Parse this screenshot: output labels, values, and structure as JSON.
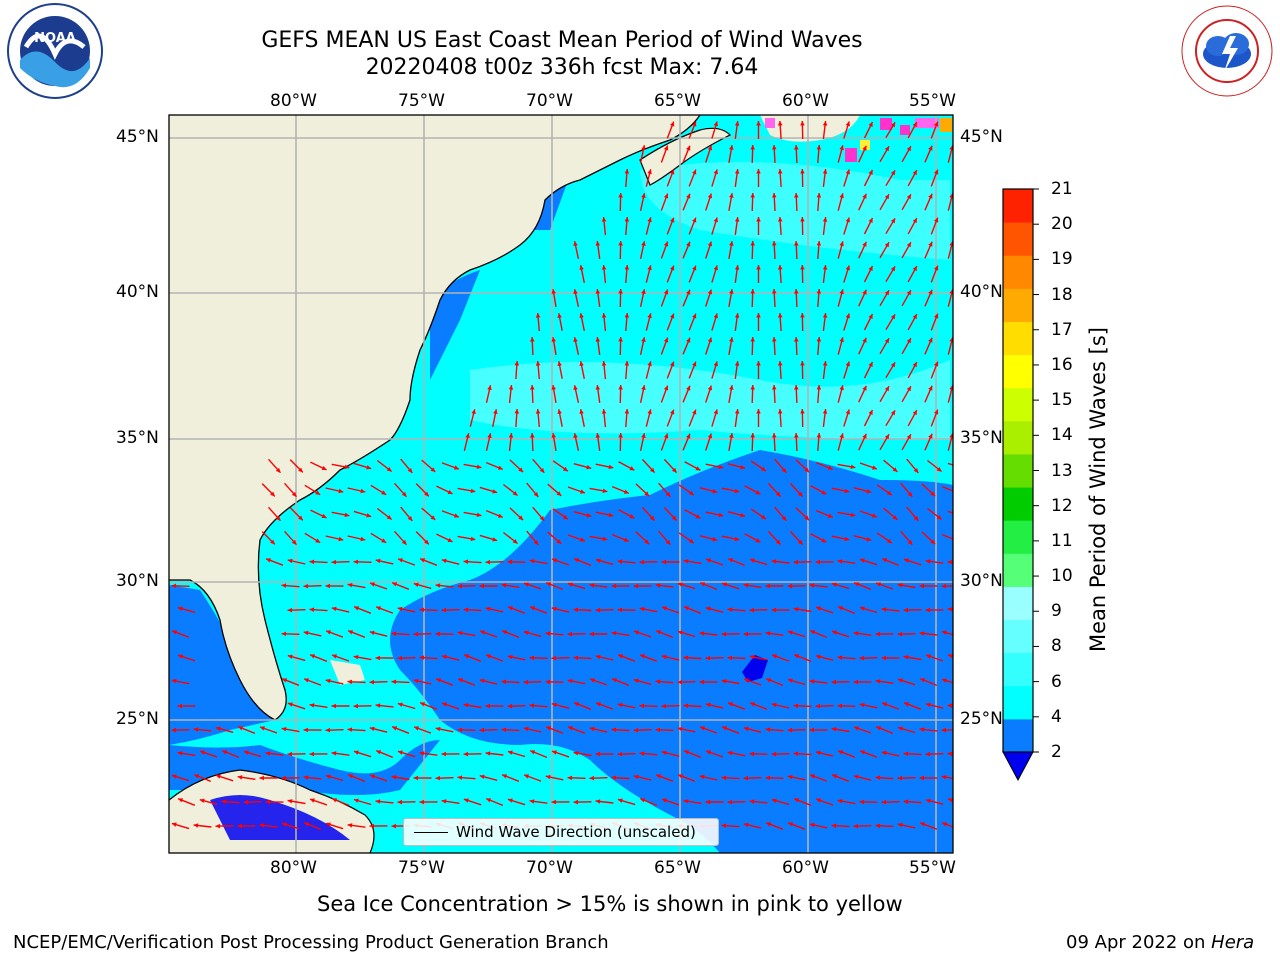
{
  "header": {
    "title_line1": "GEFS MEAN US East Coast Mean Period of Wind Waves",
    "title_line2": "20220408 t00z 336h fcst   Max: 7.64"
  },
  "logos": {
    "left": "NOAA",
    "right": "NATIONAL WEATHER SERVICE"
  },
  "axes": {
    "lon_labels": [
      "80°W",
      "75°W",
      "70°W",
      "65°W",
      "60°W",
      "55°W"
    ],
    "lat_labels": [
      "45°N",
      "40°N",
      "35°N",
      "30°N",
      "25°N"
    ]
  },
  "colorbar": {
    "label": "Mean Period of Wind Waves [s]",
    "ticks": [
      "2",
      "4",
      "6",
      "8",
      "9",
      "10",
      "11",
      "12",
      "13",
      "14",
      "15",
      "16",
      "17",
      "18",
      "19",
      "20",
      "21"
    ],
    "colors": [
      "#0a7cff",
      "#00ffff",
      "#33ffff",
      "#66ffff",
      "#99ffff",
      "#55ff77",
      "#22ee44",
      "#00cc00",
      "#66dd00",
      "#aaee00",
      "#ccff00",
      "#ffff00",
      "#ffdd00",
      "#ffaa00",
      "#ff8800",
      "#ff5500",
      "#ff2200",
      "#ff0000"
    ],
    "under_color": "#0000ee"
  },
  "legend": {
    "label": "Wind Wave Direction (unscaled)"
  },
  "colors": {
    "land": "#efefdc",
    "ocean_high": "#00ffff",
    "ocean_low": "#0a7cff",
    "ocean_min": "#0000ee",
    "arrow": "#ff0000",
    "grid": "#b3b3b3"
  },
  "notes": {
    "sea_ice": "Sea Ice Concentration > 15% is shown in pink to yellow"
  },
  "footer": {
    "left": "NCEP/EMC/Verification Post Processing Product Generation Branch",
    "right_date": "09 Apr 2022 on ",
    "right_machine": "Hera"
  }
}
